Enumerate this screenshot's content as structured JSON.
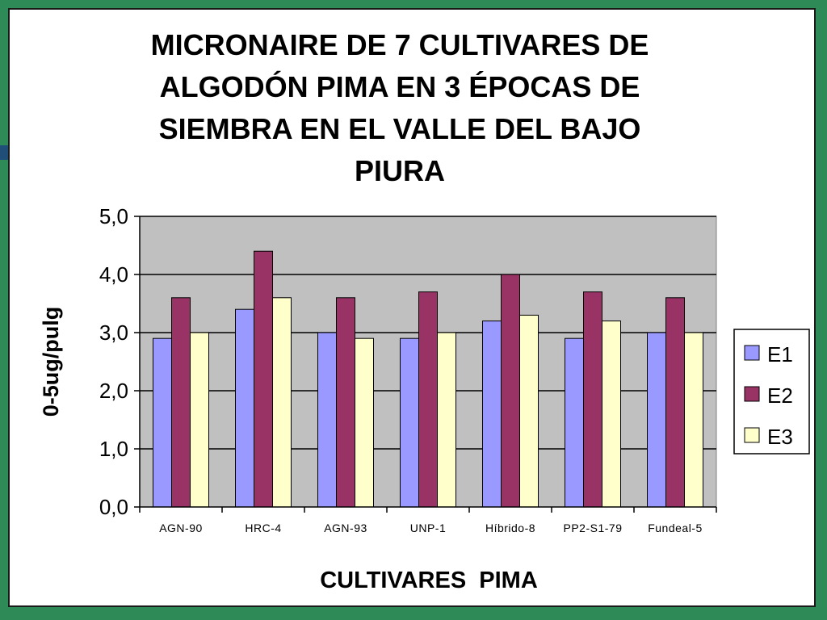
{
  "chart_data": {
    "type": "bar",
    "title_lines": [
      "MICRONAIRE DE 7 CULTIVARES DE",
      "ALGODÓN PIMA EN 3 ÉPOCAS DE",
      "SIEMBRA EN EL VALLE DEL BAJO",
      "PIURA"
    ],
    "xlabel": "CULTIVARES  PIMA",
    "ylabel": "0-5ug/pulg",
    "ylim": [
      0,
      5
    ],
    "yticks": [
      "0,0",
      "1,0",
      "2,0",
      "3,0",
      "4,0",
      "5,0"
    ],
    "categories": [
      "AGN-90",
      "HRC-4",
      "AGN-93",
      "UNP-1",
      "Híbrido-8",
      "PP2-S1-79",
      "Fundeal-5"
    ],
    "series": [
      {
        "name": "E1",
        "color": "#9999ff",
        "values": [
          2.9,
          3.4,
          3.0,
          2.9,
          3.2,
          2.9,
          3.0
        ]
      },
      {
        "name": "E2",
        "color": "#993366",
        "values": [
          3.6,
          4.4,
          3.6,
          3.7,
          4.0,
          3.7,
          3.6
        ]
      },
      {
        "name": "E3",
        "color": "#ffffcc",
        "values": [
          3.0,
          3.6,
          2.9,
          3.0,
          3.3,
          3.2,
          3.0
        ]
      }
    ],
    "grid": true,
    "plot_background": "#c0c0c0",
    "legend_position": "right"
  }
}
